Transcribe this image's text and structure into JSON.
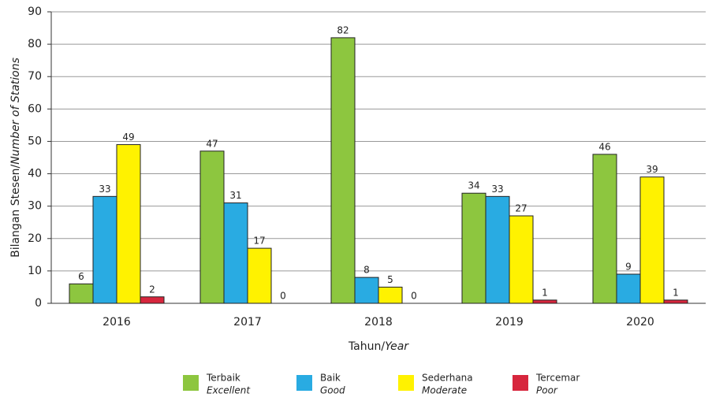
{
  "chart_data": {
    "type": "bar",
    "categories": [
      "2016",
      "2017",
      "2018",
      "2019",
      "2020"
    ],
    "series": [
      {
        "name": "Terbaik",
        "name_en": "Excellent",
        "color": "#8dc63f",
        "values": [
          6,
          47,
          82,
          34,
          46
        ]
      },
      {
        "name": "Baik",
        "name_en": "Good",
        "color": "#29abe2",
        "values": [
          33,
          31,
          8,
          33,
          9
        ]
      },
      {
        "name": "Sederhana",
        "name_en": "Moderate",
        "color": "#fff200",
        "values": [
          49,
          17,
          5,
          27,
          39
        ]
      },
      {
        "name": "Tercemar",
        "name_en": "Poor",
        "color": "#d7263d",
        "values": [
          2,
          0,
          0,
          1,
          1
        ]
      }
    ],
    "y_label": [
      "Bilangan Stesen/",
      "Number of Stations"
    ],
    "x_label": [
      "Tahun/",
      "Year"
    ],
    "ylim": [
      0,
      90
    ],
    "yticks": [
      0,
      10,
      20,
      30,
      40,
      50,
      60,
      70,
      80,
      90
    ],
    "grid": true,
    "legend": "bottom"
  }
}
